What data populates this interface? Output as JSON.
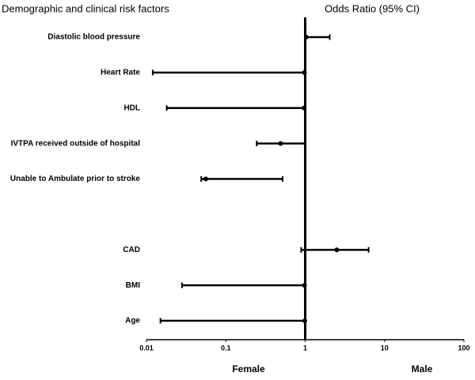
{
  "chart_data": {
    "type": "forest",
    "title": "Demographic and clinical risk factors",
    "x_label": "Odds Ratio (95% CI)",
    "annotations": [
      "Female",
      "Male"
    ],
    "categories": [
      "Diastolic blood pressure",
      "Heart Rate",
      "HDL",
      "IVTPA received outside of hospital",
      "Unable to Ambulate prior to stroke",
      null,
      "CAD",
      "BMI",
      "Age"
    ],
    "values": [
      1.03,
      0.98,
      0.97,
      0.49,
      0.056,
      null,
      2.5,
      0.98,
      0.99
    ],
    "lower": [
      1.01,
      0.012,
      0.018,
      0.245,
      0.049,
      null,
      0.89,
      0.028,
      0.015
    ],
    "upper": [
      2.04,
      0.98,
      0.99,
      1.0,
      0.52,
      null,
      6.3,
      0.99,
      1.0
    ],
    "color": "#000000",
    "xscale": "log",
    "xlim": [
      0.01,
      100
    ],
    "xticks": [
      0.01,
      0.1,
      1,
      10,
      100
    ],
    "reference_line": 1
  }
}
